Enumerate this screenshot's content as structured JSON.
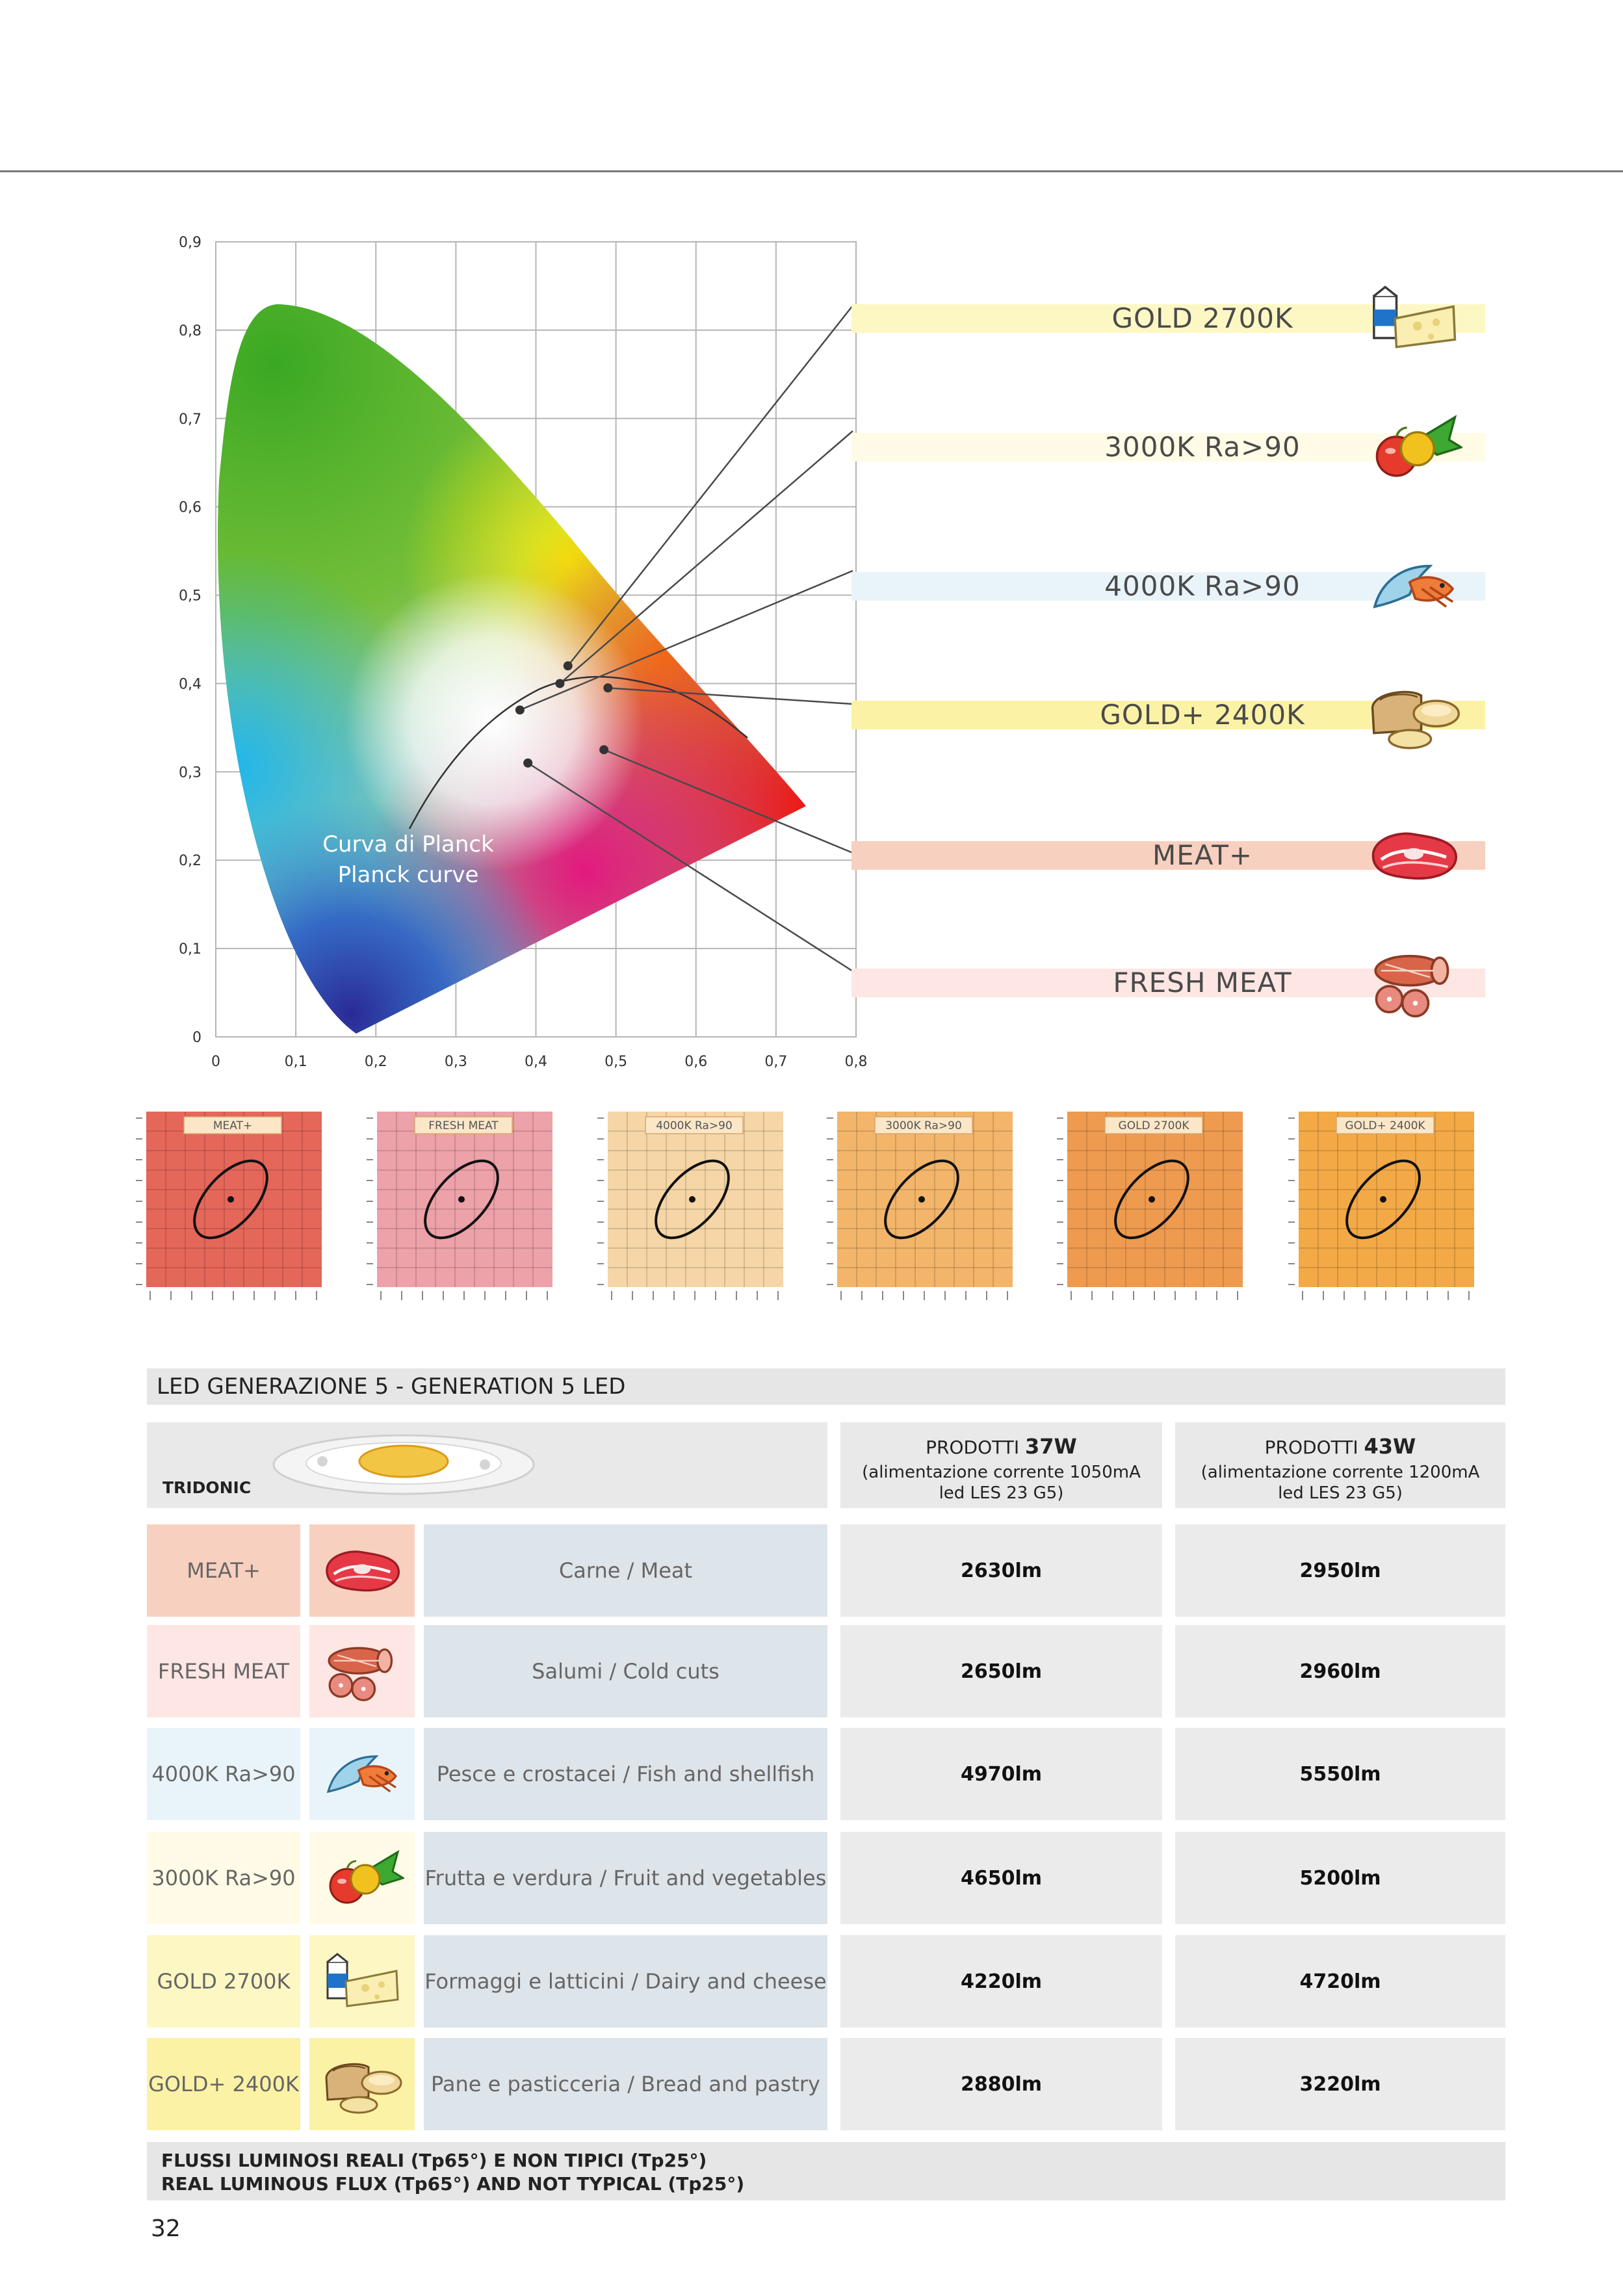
{
  "chart_data": {
    "type": "scatter",
    "title": "",
    "xlabel": "",
    "ylabel": "",
    "xlim": [
      0,
      0.8
    ],
    "ylim": [
      0,
      0.9
    ],
    "x_ticks": [
      "0",
      "0,1",
      "0,2",
      "0,3",
      "0,4",
      "0,5",
      "0,6",
      "0,7",
      "0,8"
    ],
    "y_ticks": [
      "0",
      "0,1",
      "0,2",
      "0,3",
      "0,4",
      "0,5",
      "0,6",
      "0,7",
      "0,8",
      "0,9"
    ],
    "planck_label_1": "Curva di Planck",
    "planck_label_2": "Planck curve",
    "points": [
      {
        "name": "GOLD 2700K",
        "x": 0.44,
        "y": 0.42
      },
      {
        "name": "3000K Ra>90",
        "x": 0.43,
        "y": 0.4
      },
      {
        "name": "4000K Ra>90",
        "x": 0.38,
        "y": 0.37
      },
      {
        "name": "GOLD+ 2400K",
        "x": 0.49,
        "y": 0.395
      },
      {
        "name": "MEAT+",
        "x": 0.485,
        "y": 0.325
      },
      {
        "name": "FRESH MEAT",
        "x": 0.39,
        "y": 0.31
      }
    ]
  },
  "labels": [
    {
      "text": "GOLD 2700K",
      "color": "#fdf7c4",
      "icon": "dairy-cheese-icon"
    },
    {
      "text": "3000K Ra>90",
      "color": "#fffbe6",
      "icon": "fruit-vegetables-icon"
    },
    {
      "text": "4000K Ra>90",
      "color": "#e9f4fa",
      "icon": "fish-shellfish-icon"
    },
    {
      "text": "GOLD+ 2400K",
      "color": "#fbf2a6",
      "icon": "bread-pastry-icon"
    },
    {
      "text": "MEAT+",
      "color": "#f8d0bf",
      "icon": "meat-icon"
    },
    {
      "text": "FRESH MEAT",
      "color": "#fde6e3",
      "icon": "cold-cuts-icon"
    }
  ],
  "thumbs": [
    {
      "label": "MEAT+",
      "bg": "#e5675a"
    },
    {
      "label": "FRESH MEAT",
      "bg": "#eda1a8"
    },
    {
      "label": "4000K Ra>90",
      "bg": "#f6d6a6"
    },
    {
      "label": "3000K Ra>90",
      "bg": "#f2b56a"
    },
    {
      "label": "GOLD 2700K",
      "bg": "#ee9a4f"
    },
    {
      "label": "GOLD+ 2400K",
      "bg": "#f3a946"
    }
  ],
  "table": {
    "title": "LED GENERAZIONE 5 - GENERATION 5 LED",
    "brand": "TRIDONIC",
    "col1": {
      "prefix": "PRODOTTI ",
      "watt": "37W",
      "line2": "(alimentazione corrente 1050mA",
      "line3": "led LES 23 G5)"
    },
    "col2": {
      "prefix": "PRODOTTI ",
      "watt": "43W",
      "line2": "(alimentazione corrente 1200mA",
      "line3": "led LES 23 G5)"
    },
    "rows": [
      {
        "label": "MEAT+",
        "bg": "#f8d0bf",
        "icon": "meat-icon",
        "app": "Carne / Meat",
        "v37": "2630lm",
        "v43": "2950lm"
      },
      {
        "label": "FRESH MEAT",
        "bg": "#fde6e3",
        "icon": "cold-cuts-icon",
        "app": "Salumi / Cold cuts",
        "v37": "2650lm",
        "v43": "2960lm"
      },
      {
        "label": "4000K Ra>90",
        "bg": "#e9f4fa",
        "icon": "fish-shellfish-icon",
        "app": "Pesce e crostacei / Fish and shellfish",
        "v37": "4970lm",
        "v43": "5550lm"
      },
      {
        "label": "3000K Ra>90",
        "bg": "#fffbe6",
        "icon": "fruit-vegetables-icon",
        "app": "Frutta e verdura / Fruit and vegetables",
        "v37": "4650lm",
        "v43": "5200lm"
      },
      {
        "label": "GOLD 2700K",
        "bg": "#fdf7c4",
        "icon": "dairy-cheese-icon",
        "app": "Formaggi e latticini / Dairy and cheese",
        "v37": "4220lm",
        "v43": "4720lm"
      },
      {
        "label": "GOLD+ 2400K",
        "bg": "#fbf2a6",
        "icon": "bread-pastry-icon",
        "app": "Pane e pasticceria / Bread and pastry",
        "v37": "2880lm",
        "v43": "3220lm"
      }
    ]
  },
  "footer": {
    "line1": "FLUSSI LUMINOSI REALI (Tp65°) E NON TIPICI (Tp25°)",
    "line2": "REAL LUMINOUS FLUX (Tp65°) AND NOT TYPICAL (Tp25°)"
  },
  "page_number": "32"
}
